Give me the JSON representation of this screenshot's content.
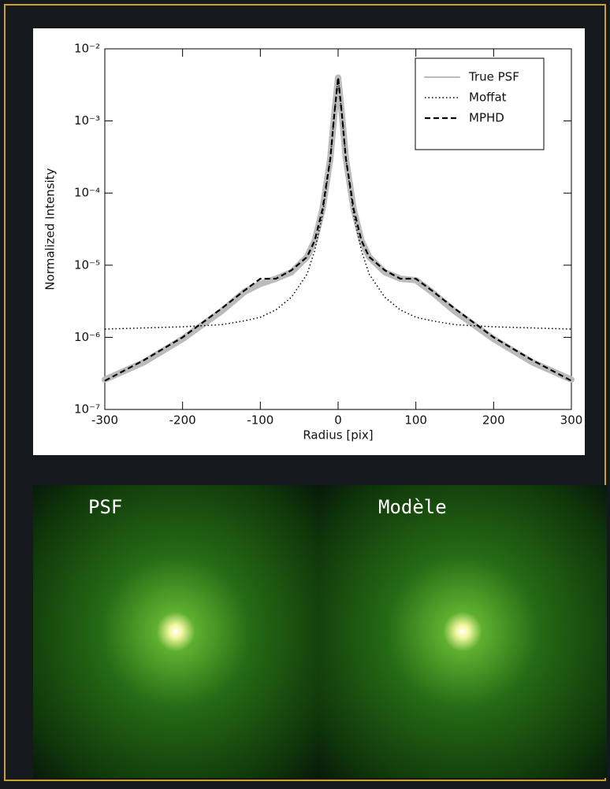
{
  "chart_data": {
    "type": "line",
    "xlabel": "Radius [pix]",
    "ylabel": "Normalized Intensity",
    "x": [
      -300,
      -250,
      -200,
      -150,
      -120,
      -100,
      -80,
      -60,
      -40,
      -30,
      -20,
      -10,
      -5,
      0,
      5,
      10,
      20,
      30,
      40,
      60,
      80,
      100,
      120,
      150,
      200,
      250,
      300
    ],
    "series": [
      {
        "name": "True PSF",
        "color": "#bbbbbb",
        "style": "solid",
        "values": [
          2.6e-07,
          4.5e-07,
          9.5e-07,
          2.3e-06,
          4.3e-06,
          5.5e-06,
          6.5e-06,
          8e-06,
          1.3e-05,
          2.2e-05,
          6e-05,
          0.0003,
          0.0012,
          0.004,
          0.0012,
          0.0003,
          6e-05,
          2.2e-05,
          1.3e-05,
          8e-06,
          6.5e-06,
          6.2e-06,
          4.3e-06,
          2.3e-06,
          9.5e-07,
          4.5e-07,
          2.6e-07
        ]
      },
      {
        "name": "Moffat",
        "color": "#000000",
        "style": "dotted",
        "values": [
          1.3e-06,
          1.35e-06,
          1.4e-06,
          1.5e-06,
          1.7e-06,
          1.9e-06,
          2.4e-06,
          3.6e-06,
          7.5e-06,
          1.6e-05,
          5e-05,
          0.0003,
          0.0012,
          0.004,
          0.0012,
          0.0003,
          5e-05,
          1.6e-05,
          7.5e-06,
          3.6e-06,
          2.4e-06,
          1.9e-06,
          1.7e-06,
          1.5e-06,
          1.4e-06,
          1.35e-06,
          1.3e-06
        ]
      },
      {
        "name": "MPHD",
        "color": "#000000",
        "style": "dashed",
        "values": [
          2.5e-07,
          4.8e-07,
          1e-06,
          2.5e-06,
          4.5e-06,
          6.5e-06,
          6.5e-06,
          8.5e-06,
          1.3e-05,
          2.2e-05,
          6e-05,
          0.0003,
          0.0012,
          0.004,
          0.0012,
          0.0003,
          6e-05,
          2.2e-05,
          1.3e-05,
          8.5e-06,
          6.5e-06,
          6.5e-06,
          4.5e-06,
          2.5e-06,
          1e-06,
          4.8e-07,
          2.5e-07
        ]
      }
    ],
    "xlim": [
      -300,
      300
    ],
    "xticks": [
      -300,
      -200,
      -100,
      0,
      100,
      200,
      300
    ],
    "ylim": [
      1e-07,
      0.01
    ],
    "yscale": "log",
    "yticks": [
      {
        "value": 1e-07,
        "label": "10⁻⁷"
      },
      {
        "value": 1e-06,
        "label": "10⁻⁶"
      },
      {
        "value": 1e-05,
        "label": "10⁻⁵"
      },
      {
        "value": 0.0001,
        "label": "10⁻⁴"
      },
      {
        "value": 0.001,
        "label": "10⁻³"
      },
      {
        "value": 0.01,
        "label": "10⁻²"
      }
    ],
    "legend": "upper right",
    "grid": false
  },
  "panels": [
    {
      "label": "PSF"
    },
    {
      "label": "Modèle"
    }
  ]
}
